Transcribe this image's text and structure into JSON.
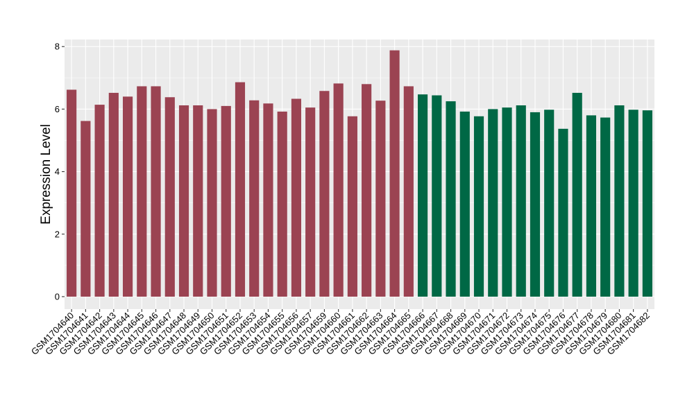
{
  "chart_data": {
    "type": "bar",
    "ylabel": "Expression Level",
    "xlabel": "",
    "ylim": [
      0,
      8.3
    ],
    "yticks": [
      0,
      2,
      4,
      6,
      8
    ],
    "grid": true,
    "colors": {
      "group1": "#9b4352",
      "group2": "#006845",
      "panel": "#ebebeb",
      "grid": "#ffffff"
    },
    "categories": [
      "GSM1704640",
      "GSM1704641",
      "GSM1704642",
      "GSM1704643",
      "GSM1704644",
      "GSM1704645",
      "GSM1704646",
      "GSM1704647",
      "GSM1704648",
      "GSM1704649",
      "GSM1704650",
      "GSM1704651",
      "GSM1704652",
      "GSM1704653",
      "GSM1704654",
      "GSM1704655",
      "GSM1704656",
      "GSM1704657",
      "GSM1704659",
      "GSM1704660",
      "GSM1704661",
      "GSM1704662",
      "GSM1704663",
      "GSM1704664",
      "GSM1704665",
      "GSM1704666",
      "GSM1704667",
      "GSM1704668",
      "GSM1704669",
      "GSM1704670",
      "GSM1704671",
      "GSM1704672",
      "GSM1704673",
      "GSM1704674",
      "GSM1704675",
      "GSM1704676",
      "GSM1704677",
      "GSM1704678",
      "GSM1704679",
      "GSM1704680",
      "GSM1704681",
      "GSM1704682"
    ],
    "values": [
      6.62,
      5.62,
      6.14,
      6.52,
      6.4,
      6.73,
      6.73,
      6.38,
      6.12,
      6.12,
      6.0,
      6.1,
      6.86,
      6.28,
      6.18,
      5.92,
      6.33,
      6.05,
      6.58,
      6.82,
      5.77,
      6.8,
      6.27,
      7.88,
      6.73,
      6.47,
      6.44,
      6.25,
      5.92,
      5.77,
      6.0,
      6.05,
      6.12,
      5.9,
      5.98,
      5.37,
      6.52,
      5.8,
      5.73,
      6.12,
      5.98,
      5.96
    ],
    "groups": [
      1,
      1,
      1,
      1,
      1,
      1,
      1,
      1,
      1,
      1,
      1,
      1,
      1,
      1,
      1,
      1,
      1,
      1,
      1,
      1,
      1,
      1,
      1,
      1,
      1,
      2,
      2,
      2,
      2,
      2,
      2,
      2,
      2,
      2,
      2,
      2,
      2,
      2,
      2,
      2,
      2,
      2
    ]
  }
}
